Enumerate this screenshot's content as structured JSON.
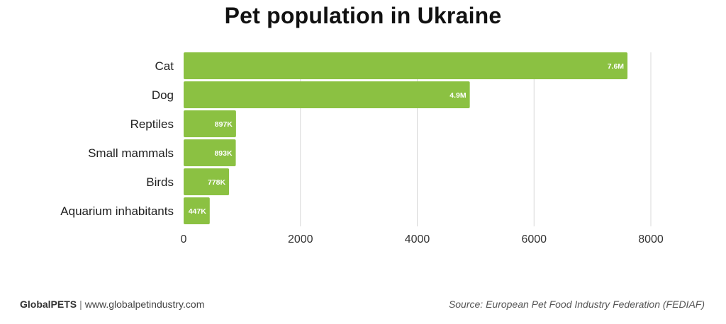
{
  "chart_data": {
    "type": "bar",
    "orientation": "horizontal",
    "title": "Pet population in Ukraine",
    "categories": [
      "Cat",
      "Dog",
      "Reptiles",
      "Small mammals",
      "Birds",
      "Aquarium inhabitants"
    ],
    "values": [
      7600,
      4900,
      897,
      893,
      778,
      447
    ],
    "value_labels": [
      "7.6M",
      "4.9M",
      "897K",
      "893K",
      "778K",
      "447K"
    ],
    "x_ticks": [
      "0",
      "2000",
      "4000",
      "6000",
      "8000"
    ],
    "x_tick_values": [
      0,
      2000,
      4000,
      6000,
      8000
    ],
    "xlim": [
      0,
      8000
    ],
    "grid": "vertical",
    "bar_color": "#8bc142",
    "grid_color": "#d9d9d9"
  },
  "footer": {
    "brand": "GlobalPETS",
    "separator": "|",
    "site": "www.globalpetindustry.com",
    "source": "Source: European Pet Food Industry Federation (FEDIAF)"
  }
}
